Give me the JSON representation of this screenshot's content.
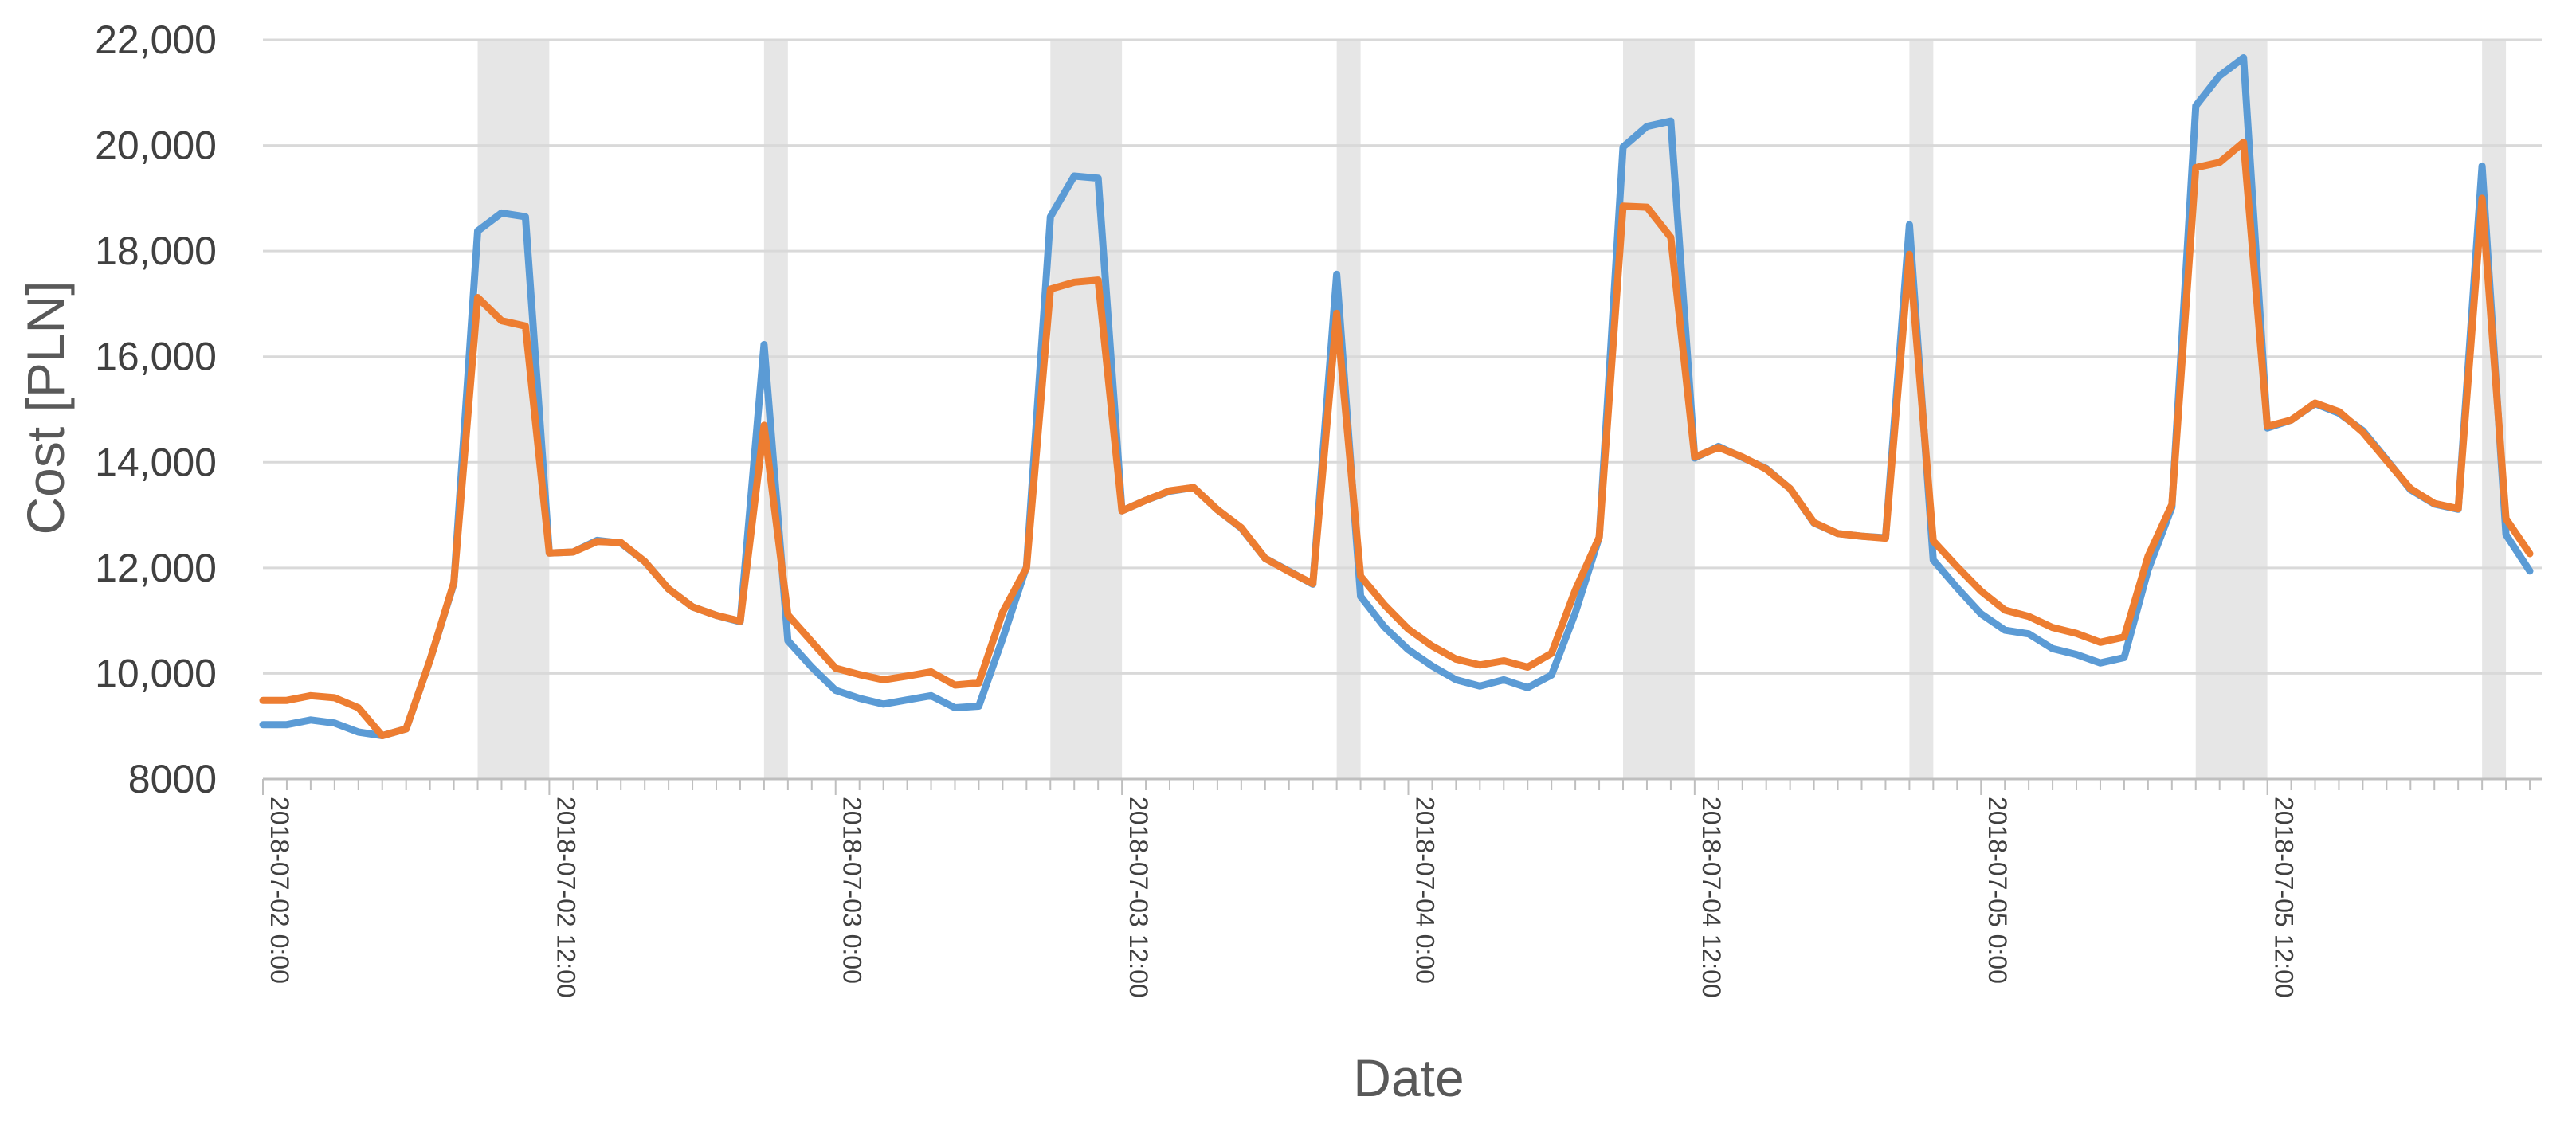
{
  "chart_data": {
    "type": "line",
    "title": "",
    "xlabel": "Date",
    "ylabel": "Cost [PLN]",
    "ylim": [
      8000,
      22000
    ],
    "y_ticks": [
      8000,
      10000,
      12000,
      14000,
      16000,
      18000,
      20000,
      22000
    ],
    "y_tick_labels": [
      "8000",
      "10,000",
      "12,000",
      "14,000",
      "16,000",
      "18,000",
      "20,000",
      "22,000"
    ],
    "x_range_hours": [
      0,
      95.5
    ],
    "x_tick_step_hours": 1,
    "x_tick_labels": [
      {
        "hour": 0,
        "label": "2018-07-02 0:00"
      },
      {
        "hour": 12,
        "label": "2018-07-02 12:00"
      },
      {
        "hour": 24,
        "label": "2018-07-03 0:00"
      },
      {
        "hour": 36,
        "label": "2018-07-03 12:00"
      },
      {
        "hour": 48,
        "label": "2018-07-04 0:00"
      },
      {
        "hour": 60,
        "label": "2018-07-04 12:00"
      },
      {
        "hour": 72,
        "label": "2018-07-05 0:00"
      },
      {
        "hour": 84,
        "label": "2018-07-05 12:00"
      }
    ],
    "shaded_bands_hours": [
      [
        9,
        12
      ],
      [
        21,
        22
      ],
      [
        33,
        36
      ],
      [
        45,
        46
      ],
      [
        57,
        60
      ],
      [
        69,
        70
      ],
      [
        81,
        84
      ],
      [
        93,
        94
      ]
    ],
    "grid": true,
    "legend": "none",
    "x_hours": [
      0,
      1,
      2,
      3,
      4,
      5,
      6,
      7,
      8,
      9,
      10,
      11,
      12,
      13,
      14,
      15,
      16,
      17,
      18,
      19,
      20,
      21,
      22,
      23,
      24,
      25,
      26,
      27,
      28,
      29,
      30,
      31,
      32,
      33,
      34,
      35,
      36,
      37,
      38,
      39,
      40,
      41,
      42,
      43,
      44,
      45,
      46,
      47,
      48,
      49,
      50,
      51,
      52,
      53,
      54,
      55,
      56,
      57,
      58,
      59,
      60,
      61,
      62,
      63,
      64,
      65,
      66,
      67,
      68,
      69,
      70,
      71,
      72,
      73,
      74,
      75,
      76,
      77,
      78,
      79,
      80,
      81,
      82,
      83,
      84,
      85,
      86,
      87,
      88,
      89,
      90,
      91,
      92,
      93,
      94,
      95
    ],
    "series": [
      {
        "color": "#5b9bd5",
        "values": [
          9030,
          9030,
          9120,
          9060,
          8890,
          8820,
          8950,
          10250,
          11700,
          18380,
          18720,
          18650,
          12280,
          12300,
          12520,
          12470,
          12120,
          11600,
          11260,
          11100,
          10980,
          16230,
          10620,
          10120,
          9680,
          9530,
          9420,
          9500,
          9580,
          9350,
          9380,
          10660,
          12020,
          18650,
          19420,
          19380,
          13080,
          13280,
          13450,
          13520,
          13100,
          12750,
          12180,
          11940,
          11690,
          17560,
          11460,
          10880,
          10450,
          10140,
          9880,
          9760,
          9880,
          9730,
          9970,
          11150,
          12580,
          19970,
          20360,
          20460,
          14080,
          14300,
          14090,
          13880,
          13500,
          12850,
          12650,
          12600,
          12570,
          18500,
          12150,
          11620,
          11130,
          10820,
          10750,
          10470,
          10360,
          10200,
          10300,
          11960,
          13150,
          20750,
          21320,
          21660,
          14650,
          14800,
          15110,
          14930,
          14600,
          14050,
          13480,
          13210,
          13110,
          19610,
          12630,
          11940
        ]
      },
      {
        "color": "#ed7d31",
        "values": [
          9490,
          9490,
          9580,
          9540,
          9350,
          8820,
          8950,
          10250,
          11720,
          17120,
          16680,
          16580,
          12280,
          12300,
          12500,
          12480,
          12120,
          11600,
          11260,
          11100,
          10990,
          14700,
          11110,
          10600,
          10100,
          9980,
          9880,
          9950,
          10030,
          9780,
          9820,
          11160,
          12000,
          17280,
          17410,
          17450,
          13080,
          13280,
          13460,
          13520,
          13100,
          12760,
          12180,
          11930,
          11700,
          16820,
          11840,
          11300,
          10840,
          10520,
          10270,
          10160,
          10240,
          10120,
          10380,
          11580,
          12580,
          18850,
          18830,
          18260,
          14100,
          14280,
          14100,
          13870,
          13500,
          12860,
          12650,
          12600,
          12560,
          17940,
          12510,
          12020,
          11560,
          11200,
          11080,
          10870,
          10760,
          10590,
          10690,
          12220,
          13200,
          19580,
          19680,
          20060,
          14680,
          14800,
          15120,
          14960,
          14570,
          14030,
          13500,
          13220,
          13120,
          19000,
          12930,
          12270
        ]
      }
    ]
  }
}
